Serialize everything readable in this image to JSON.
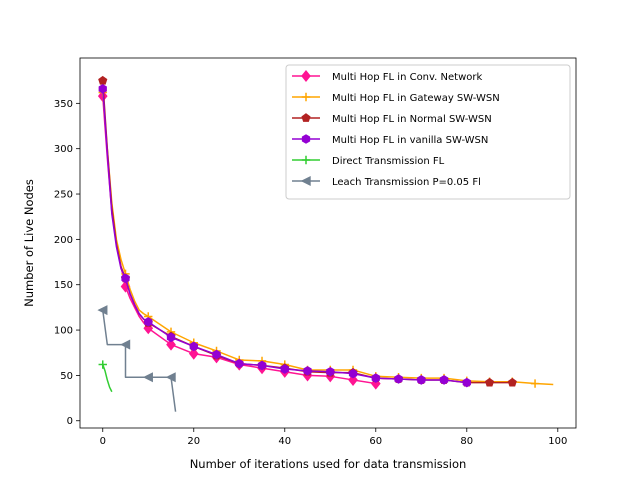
{
  "chart_data": {
    "type": "line",
    "title": "",
    "xlabel": "Number of iterations used for data transmission",
    "ylabel": "Number of Live Nodes",
    "xlim": [
      -5,
      104
    ],
    "ylim": [
      -8,
      400
    ],
    "xticks": [
      0,
      20,
      40,
      60,
      80,
      100
    ],
    "yticks": [
      0,
      50,
      100,
      150,
      200,
      250,
      300,
      350
    ],
    "grid": false,
    "legend_position": "top-right",
    "series": [
      {
        "name": "Multi Hop FL in Conv. Network",
        "color": "#ff1493",
        "marker": "diamond",
        "x": [
          0,
          1,
          2,
          3,
          4,
          5,
          6,
          7,
          8,
          9,
          10,
          15,
          20,
          25,
          30,
          35,
          40,
          45,
          50,
          55,
          60
        ],
        "y": [
          358,
          290,
          230,
          195,
          170,
          148,
          135,
          125,
          115,
          108,
          102,
          84,
          74,
          70,
          62,
          58,
          54,
          50,
          49,
          45,
          41
        ],
        "marker_x": [
          0,
          5,
          10,
          15,
          20,
          25,
          30,
          35,
          40,
          45,
          50,
          55,
          60
        ]
      },
      {
        "name": "Multi Hop FL in Gateway SW-WSN",
        "color": "#ffa500",
        "marker": "plus",
        "x": [
          0,
          1,
          2,
          3,
          4,
          5,
          6,
          7,
          8,
          9,
          10,
          15,
          20,
          25,
          30,
          35,
          40,
          45,
          50,
          55,
          60,
          65,
          70,
          75,
          80,
          85,
          90,
          95,
          99
        ],
        "y": [
          362,
          300,
          240,
          200,
          178,
          162,
          145,
          132,
          122,
          118,
          115,
          98,
          86,
          77,
          67,
          66,
          62,
          56,
          56,
          56,
          49,
          48,
          47,
          47,
          44,
          43,
          43,
          41,
          40
        ],
        "marker_x": [
          0,
          5,
          10,
          15,
          20,
          25,
          30,
          35,
          40,
          45,
          50,
          55,
          60,
          65,
          70,
          75,
          80,
          85,
          90,
          95
        ]
      },
      {
        "name": "Multi Hop FL in Normal SW-WSN",
        "color": "#b22222",
        "marker": "pentagon",
        "x": [
          0,
          1,
          2,
          3,
          4,
          5,
          6,
          7,
          8,
          9,
          10,
          15,
          20,
          25,
          30,
          35,
          40,
          45,
          50,
          55,
          60,
          65,
          70,
          75,
          80,
          85,
          90
        ],
        "y": [
          375,
          300,
          235,
          195,
          170,
          157,
          140,
          128,
          118,
          112,
          108,
          93,
          82,
          72,
          63,
          61,
          58,
          54,
          53,
          53,
          47,
          46,
          45,
          45,
          42,
          42,
          42
        ],
        "marker_x": [
          0,
          5,
          10,
          15,
          20,
          25,
          30,
          35,
          40,
          45,
          50,
          55,
          60,
          65,
          70,
          75,
          80,
          85,
          90
        ]
      },
      {
        "name": "Multi Hop FL in vanilla SW-WSN",
        "color": "#9400d3",
        "marker": "hexagon",
        "x": [
          0,
          1,
          2,
          3,
          4,
          5,
          6,
          7,
          8,
          9,
          10,
          15,
          20,
          25,
          30,
          35,
          40,
          45,
          50,
          55,
          60,
          65,
          70,
          75,
          80
        ],
        "y": [
          366,
          295,
          228,
          192,
          168,
          157,
          140,
          128,
          118,
          112,
          109,
          92,
          82,
          73,
          63,
          61,
          57,
          55,
          54,
          52,
          47,
          46,
          45,
          45,
          42
        ],
        "marker_x": [
          0,
          5,
          10,
          15,
          20,
          25,
          30,
          35,
          40,
          45,
          50,
          55,
          60,
          65,
          70,
          75,
          80
        ]
      },
      {
        "name": "Direct Transmission FL",
        "color": "#32cd32",
        "marker": "plus",
        "x": [
          0,
          0.5,
          1,
          1.5,
          2
        ],
        "y": [
          62,
          55,
          45,
          37,
          32
        ],
        "marker_x": [
          0
        ]
      },
      {
        "name": "Leach Transmission P=0.05 Fl",
        "color": "#708090",
        "marker": "triangle-left",
        "x": [
          0,
          1,
          5,
          5,
          6.5,
          10,
          15,
          16
        ],
        "y": [
          122,
          84,
          84,
          48,
          48,
          48,
          48,
          10
        ],
        "marker_x": [
          0,
          5,
          10,
          15
        ]
      }
    ]
  }
}
